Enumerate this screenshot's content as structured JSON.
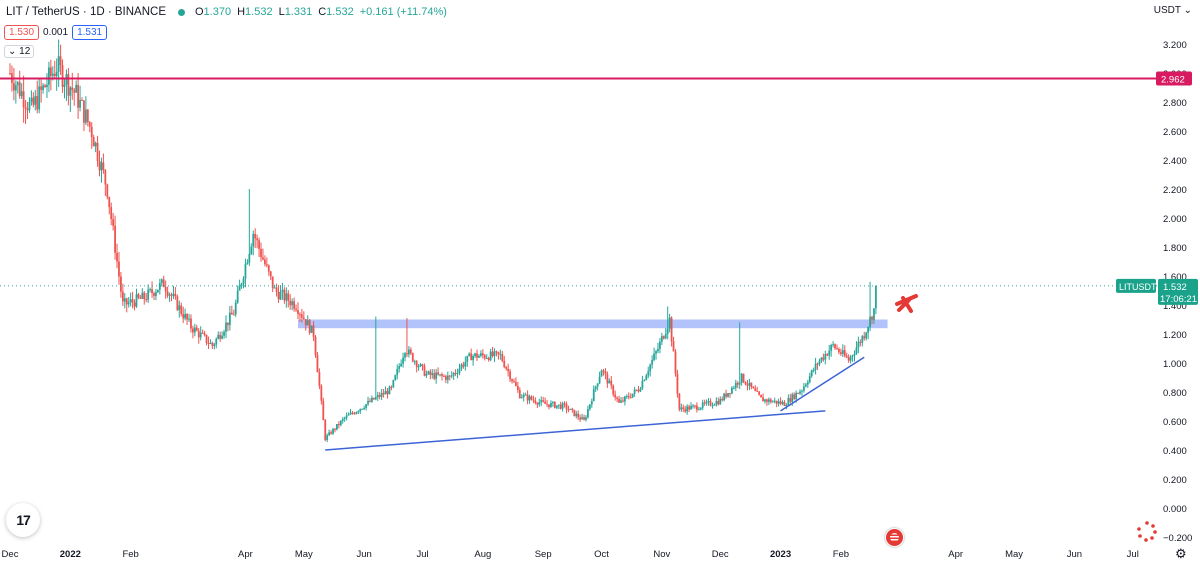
{
  "header": {
    "symbol_title": "LIT / TetherUS · 1D · BINANCE",
    "ohlc": [
      {
        "key": "O",
        "value": "1.370"
      },
      {
        "key": "H",
        "value": "1.532"
      },
      {
        "key": "L",
        "value": "1.331"
      },
      {
        "key": "C",
        "value": "1.532"
      }
    ],
    "change": "+0.161 (+11.74%)",
    "sell_price": "1.530",
    "spread": "0.001",
    "buy_price": "1.531",
    "collapse_label": "12"
  },
  "currency_label": "USDT",
  "colors": {
    "up": "#26a69a",
    "down": "#ef5350",
    "resistance_line": "#d81b60",
    "zone": "#a9bdfa",
    "trendline": "#3c64d6",
    "price_tag": "#1aa38a"
  },
  "chart_data": {
    "type": "candlestick",
    "title": "LIT / TetherUS · 1D · BINANCE",
    "ylim": [
      -0.2,
      3.4
    ],
    "y_ticks": [
      "3.200",
      "3.000",
      "2.800",
      "2.600",
      "2.400",
      "2.200",
      "2.000",
      "1.800",
      "1.600",
      "1.400",
      "1.200",
      "1.000",
      "0.800",
      "0.600",
      "0.400",
      "0.200",
      "0.000",
      "−0.200"
    ],
    "x_ticks": [
      "Dec",
      "2022",
      "Feb",
      "Apr",
      "May",
      "Jun",
      "Jul",
      "Aug",
      "Sep",
      "Oct",
      "Nov",
      "Dec",
      "2023",
      "Feb",
      "Apr",
      "May",
      "Jun",
      "Jul"
    ],
    "x_range": [
      "2021-12-01",
      "2023-07-15"
    ],
    "last_price": {
      "label": "LITUSDT",
      "value": "1.532",
      "countdown": "17:06:21"
    },
    "resistance": {
      "value": "2.962"
    },
    "zone": {
      "from": "2022-04-28",
      "to": "2023-02-25",
      "low": 1.24,
      "high": 1.3
    },
    "trendlines": [
      {
        "from": {
          "x": "2022-05-12",
          "y": 0.4
        },
        "to": {
          "x": "2023-01-24",
          "y": 0.67
        }
      },
      {
        "from": {
          "x": "2023-01-01",
          "y": 0.67
        },
        "to": {
          "x": "2023-02-13",
          "y": 1.04
        }
      }
    ],
    "price_path": [
      [
        "2021-12-01",
        3.0
      ],
      [
        "2021-12-12",
        2.75
      ],
      [
        "2021-12-25",
        3.05
      ],
      [
        "2022-01-04",
        2.85
      ],
      [
        "2022-01-12",
        2.6
      ],
      [
        "2022-01-20",
        2.2
      ],
      [
        "2022-01-28",
        1.4
      ],
      [
        "2022-02-08",
        1.45
      ],
      [
        "2022-02-18",
        1.55
      ],
      [
        "2022-03-04",
        1.25
      ],
      [
        "2022-03-15",
        1.12
      ],
      [
        "2022-03-26",
        1.35
      ],
      [
        "2022-04-05",
        1.9
      ],
      [
        "2022-04-16",
        1.5
      ],
      [
        "2022-04-27",
        1.4
      ],
      [
        "2022-05-06",
        1.2
      ],
      [
        "2022-05-12",
        0.48
      ],
      [
        "2022-05-22",
        0.62
      ],
      [
        "2022-06-06",
        0.75
      ],
      [
        "2022-06-15",
        0.82
      ],
      [
        "2022-06-22",
        1.1
      ],
      [
        "2022-07-03",
        0.92
      ],
      [
        "2022-07-15",
        0.9
      ],
      [
        "2022-07-26",
        1.05
      ],
      [
        "2022-08-10",
        1.05
      ],
      [
        "2022-08-20",
        0.78
      ],
      [
        "2022-09-01",
        0.72
      ],
      [
        "2022-09-12",
        0.7
      ],
      [
        "2022-09-22",
        0.6
      ],
      [
        "2022-10-01",
        0.96
      ],
      [
        "2022-10-10",
        0.72
      ],
      [
        "2022-10-20",
        0.82
      ],
      [
        "2022-10-30",
        1.1
      ],
      [
        "2022-11-05",
        1.3
      ],
      [
        "2022-11-10",
        0.68
      ],
      [
        "2022-11-20",
        0.7
      ],
      [
        "2022-12-01",
        0.74
      ],
      [
        "2022-12-12",
        0.9
      ],
      [
        "2022-12-22",
        0.75
      ],
      [
        "2023-01-03",
        0.72
      ],
      [
        "2023-01-12",
        0.82
      ],
      [
        "2023-01-20",
        1.0
      ],
      [
        "2023-01-28",
        1.12
      ],
      [
        "2023-02-05",
        1.02
      ],
      [
        "2023-02-13",
        1.2
      ],
      [
        "2023-02-18",
        1.37
      ],
      [
        "2023-02-19",
        1.532
      ]
    ],
    "spikes": [
      {
        "date": "2022-04-03",
        "high": 2.2
      },
      {
        "date": "2022-06-07",
        "high": 1.32
      },
      {
        "date": "2022-06-23",
        "high": 1.31
      },
      {
        "date": "2022-11-04",
        "high": 1.39
      },
      {
        "date": "2022-12-11",
        "high": 1.28
      },
      {
        "date": "2023-02-16",
        "high": 1.56
      }
    ]
  }
}
